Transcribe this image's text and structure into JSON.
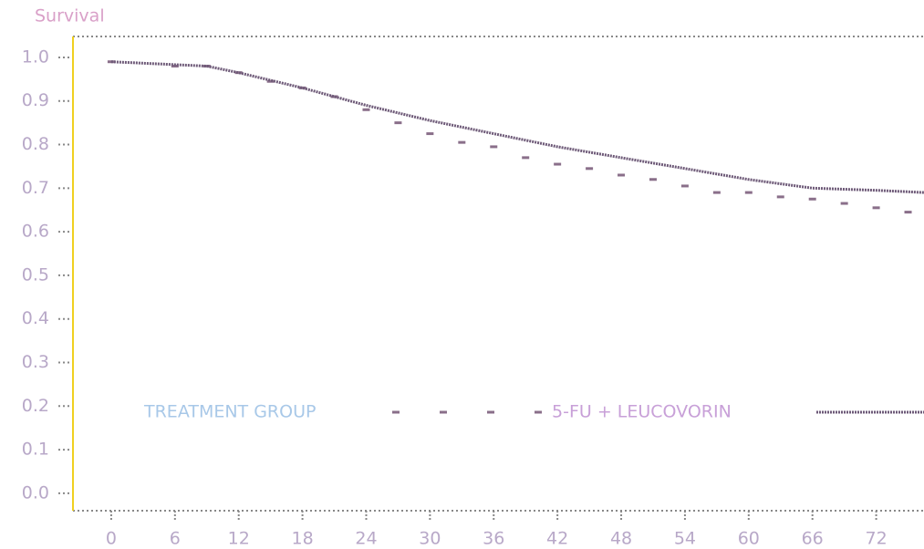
{
  "chart_data": {
    "type": "line",
    "ylabel": "Survival",
    "legend_title": "TREATMENT GROUP",
    "legend": "bottom",
    "xlim": [
      -3.6,
      76.5
    ],
    "xticks": [
      0,
      6,
      12,
      18,
      24,
      30,
      36,
      42,
      48,
      54,
      60,
      66,
      72
    ],
    "ylim": [
      -0.04,
      1.048
    ],
    "yticks": [
      {
        "value": 0,
        "label": "0.0"
      },
      0.1,
      0.2,
      0.3,
      0.4,
      0.5,
      0.6,
      0.7,
      0.8,
      0.9,
      {
        "value": 1,
        "label": "1.0"
      }
    ],
    "series": [
      {
        "name": "5-FU + LEUCOVORIN",
        "color": "#8a6f8a",
        "style": "sparse",
        "x": [
          0,
          6,
          9,
          12,
          15,
          18,
          21,
          24,
          27,
          30,
          33,
          36,
          39,
          42,
          45,
          48,
          51,
          54,
          57,
          60,
          63,
          66,
          69,
          72,
          75
        ],
        "values": [
          0.99,
          0.98,
          0.98,
          0.965,
          0.945,
          0.93,
          0.91,
          0.88,
          0.85,
          0.825,
          0.805,
          0.795,
          0.77,
          0.755,
          0.745,
          0.73,
          0.72,
          0.705,
          0.69,
          0.69,
          0.68,
          0.675,
          0.665,
          0.655,
          0.645
        ]
      },
      {
        "color": "#6e5a78",
        "style": "dense",
        "x": [
          0,
          9,
          12,
          18,
          24,
          30,
          36,
          42,
          48,
          54,
          60,
          66,
          72,
          76.5
        ],
        "values": [
          0.99,
          0.98,
          0.965,
          0.93,
          0.89,
          0.855,
          0.825,
          0.795,
          0.77,
          0.745,
          0.72,
          0.7,
          0.695,
          0.69
        ]
      }
    ]
  }
}
